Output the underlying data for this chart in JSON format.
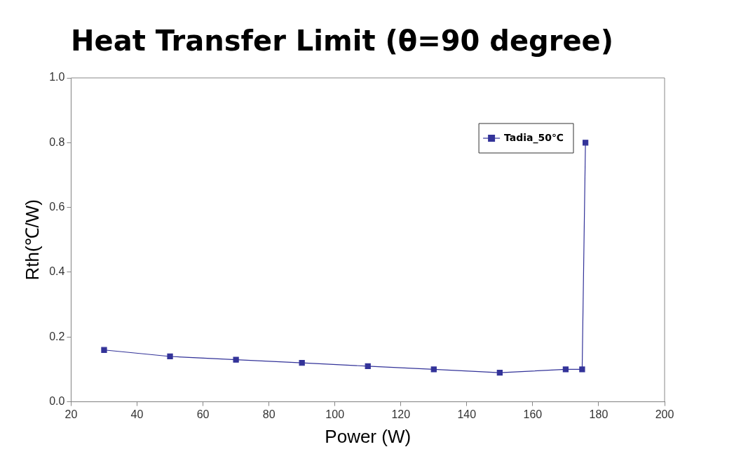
{
  "chart_data": {
    "type": "line",
    "title": "Heat Transfer Limit (θ=90 degree)",
    "xlabel": "Power (W)",
    "ylabel": "Rth(℃/W)",
    "x": [
      30,
      50,
      70,
      90,
      110,
      130,
      150,
      170,
      175,
      176
    ],
    "series": [
      {
        "name": "Tadia_50℃",
        "color": "#333399",
        "values": [
          0.16,
          0.14,
          0.13,
          0.12,
          0.11,
          0.1,
          0.09,
          0.1,
          0.1,
          0.8
        ]
      }
    ],
    "xlim": [
      20,
      200
    ],
    "xticks": [
      20,
      40,
      60,
      80,
      100,
      120,
      140,
      160,
      180,
      200
    ],
    "ylim": [
      0,
      1
    ],
    "yticks": [
      {
        "value": 0,
        "label": "0.0"
      },
      {
        "value": 0.2,
        "label": "0.2"
      },
      {
        "value": 0.4,
        "label": "0.4"
      },
      {
        "value": 0.6,
        "label": "0.6"
      },
      {
        "value": 0.8,
        "label": "0.8"
      },
      {
        "value": 1,
        "label": "1.0"
      }
    ],
    "grid": false,
    "legend": "top right",
    "marker": "square",
    "line_style": "solid"
  }
}
